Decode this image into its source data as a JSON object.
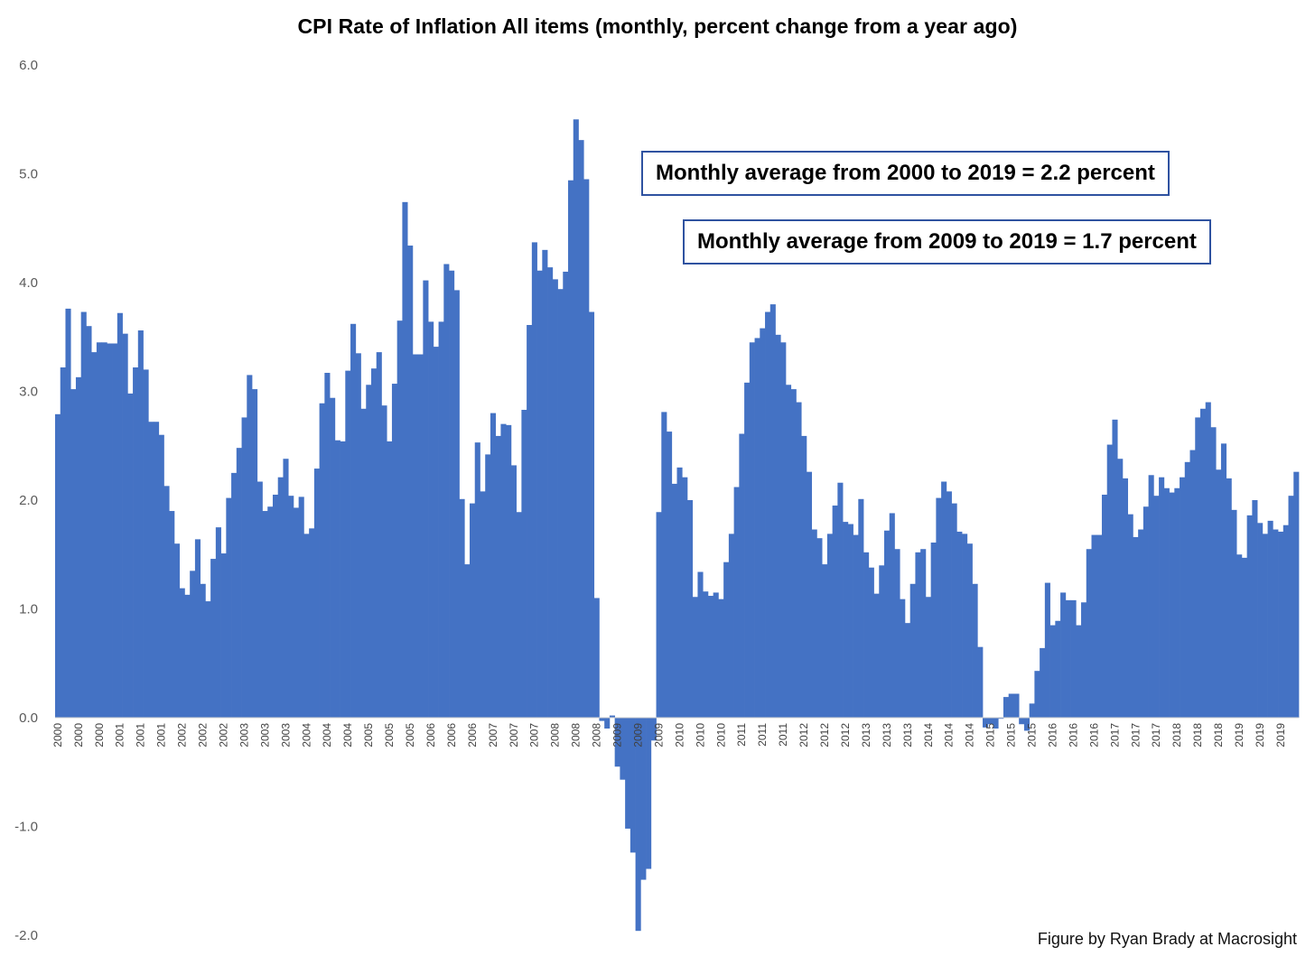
{
  "chart_data": {
    "type": "bar",
    "title": "CPI Rate of Inflation All items (monthly, percent change from a year ago)",
    "xlabel": "",
    "ylabel": "",
    "ylim": [
      -2.0,
      6.0
    ],
    "yticks": [
      "6.0",
      "5.0",
      "4.0",
      "3.0",
      "2.0",
      "1.0",
      "0.0",
      "-1.0",
      "-2.0"
    ],
    "ytick_values": [
      6,
      5,
      4,
      3,
      2,
      1,
      0,
      -1,
      -2
    ],
    "grid": false,
    "legend": "none",
    "bar_color": "#4472c4",
    "categories": [
      "2000",
      "2000",
      "2000",
      "2000",
      "2000",
      "2000",
      "2000",
      "2000",
      "2000",
      "2000",
      "2000",
      "2000",
      "2001",
      "2001",
      "2001",
      "2001",
      "2001",
      "2001",
      "2001",
      "2001",
      "2001",
      "2001",
      "2001",
      "2001",
      "2002",
      "2002",
      "2002",
      "2002",
      "2002",
      "2002",
      "2002",
      "2002",
      "2002",
      "2002",
      "2002",
      "2002",
      "2003",
      "2003",
      "2003",
      "2003",
      "2003",
      "2003",
      "2003",
      "2003",
      "2003",
      "2003",
      "2003",
      "2003",
      "2004",
      "2004",
      "2004",
      "2004",
      "2004",
      "2004",
      "2004",
      "2004",
      "2004",
      "2004",
      "2004",
      "2004",
      "2005",
      "2005",
      "2005",
      "2005",
      "2005",
      "2005",
      "2005",
      "2005",
      "2005",
      "2005",
      "2005",
      "2005",
      "2006",
      "2006",
      "2006",
      "2006",
      "2006",
      "2006",
      "2006",
      "2006",
      "2006",
      "2006",
      "2006",
      "2006",
      "2007",
      "2007",
      "2007",
      "2007",
      "2007",
      "2007",
      "2007",
      "2007",
      "2007",
      "2007",
      "2007",
      "2007",
      "2008",
      "2008",
      "2008",
      "2008",
      "2008",
      "2008",
      "2008",
      "2008",
      "2008",
      "2008",
      "2008",
      "2008",
      "2009",
      "2009",
      "2009",
      "2009",
      "2009",
      "2009",
      "2009",
      "2009",
      "2009",
      "2009",
      "2009",
      "2009",
      "2010",
      "2010",
      "2010",
      "2010",
      "2010",
      "2010",
      "2010",
      "2010",
      "2010",
      "2010",
      "2010",
      "2010",
      "2011",
      "2011",
      "2011",
      "2011",
      "2011",
      "2011",
      "2011",
      "2011",
      "2011",
      "2011",
      "2011",
      "2011",
      "2012",
      "2012",
      "2012",
      "2012",
      "2012",
      "2012",
      "2012",
      "2012",
      "2012",
      "2012",
      "2012",
      "2012",
      "2013",
      "2013",
      "2013",
      "2013",
      "2013",
      "2013",
      "2013",
      "2013",
      "2013",
      "2013",
      "2013",
      "2013",
      "2014",
      "2014",
      "2014",
      "2014",
      "2014",
      "2014",
      "2014",
      "2014",
      "2014",
      "2014",
      "2014",
      "2014",
      "2015",
      "2015",
      "2015",
      "2015",
      "2015",
      "2015",
      "2015",
      "2015",
      "2015",
      "2015",
      "2015",
      "2015",
      "2016",
      "2016",
      "2016",
      "2016",
      "2016",
      "2016",
      "2016",
      "2016",
      "2016",
      "2016",
      "2016",
      "2016",
      "2017",
      "2017",
      "2017",
      "2017",
      "2017",
      "2017",
      "2017",
      "2017",
      "2017",
      "2017",
      "2017",
      "2017",
      "2018",
      "2018",
      "2018",
      "2018",
      "2018",
      "2018",
      "2018",
      "2018",
      "2018",
      "2018",
      "2018",
      "2018",
      "2019",
      "2019",
      "2019",
      "2019",
      "2019",
      "2019",
      "2019",
      "2019",
      "2019",
      "2019",
      "2019",
      "2019"
    ],
    "values": [
      2.79,
      3.22,
      3.76,
      3.02,
      3.13,
      3.73,
      3.6,
      3.36,
      3.45,
      3.45,
      3.44,
      3.44,
      3.72,
      3.53,
      2.98,
      3.22,
      3.56,
      3.2,
      2.72,
      2.72,
      2.6,
      2.13,
      1.9,
      1.6,
      1.19,
      1.13,
      1.35,
      1.64,
      1.23,
      1.07,
      1.46,
      1.75,
      1.51,
      2.02,
      2.25,
      2.48,
      2.76,
      3.15,
      3.02,
      2.17,
      1.9,
      1.94,
      2.05,
      2.21,
      2.38,
      2.04,
      1.93,
      2.03,
      1.69,
      1.74,
      2.29,
      2.89,
      3.17,
      2.94,
      2.55,
      2.54,
      3.19,
      3.62,
      3.35,
      2.84,
      3.06,
      3.21,
      3.36,
      2.87,
      2.54,
      3.07,
      3.65,
      4.74,
      4.34,
      3.34,
      3.34,
      4.02,
      3.64,
      3.41,
      3.64,
      4.17,
      4.11,
      3.93,
      2.01,
      1.41,
      1.97,
      2.53,
      2.08,
      2.42,
      2.8,
      2.59,
      2.7,
      2.69,
      2.32,
      1.89,
      2.83,
      3.61,
      4.37,
      4.11,
      4.3,
      4.14,
      4.03,
      3.94,
      4.1,
      4.94,
      5.5,
      5.31,
      4.95,
      3.73,
      1.1,
      -0.03,
      -0.1,
      0.02,
      -0.45,
      -0.57,
      -1.02,
      -1.24,
      -1.96,
      -1.49,
      -1.39,
      -0.21,
      1.89,
      2.81,
      2.63,
      2.15,
      2.3,
      2.21,
      2.0,
      1.11,
      1.34,
      1.16,
      1.12,
      1.15,
      1.09,
      1.43,
      1.69,
      2.12,
      2.61,
      3.08,
      3.45,
      3.49,
      3.58,
      3.73,
      3.8,
      3.52,
      3.45,
      3.06,
      3.02,
      2.9,
      2.59,
      2.26,
      1.73,
      1.65,
      1.41,
      1.69,
      1.95,
      2.16,
      1.8,
      1.78,
      1.68,
      2.01,
      1.52,
      1.38,
      1.14,
      1.4,
      1.72,
      1.88,
      1.55,
      1.09,
      0.87,
      1.23,
      1.52,
      1.55,
      1.11,
      1.61,
      2.02,
      2.17,
      2.08,
      1.97,
      1.71,
      1.69,
      1.6,
      1.23,
      0.65,
      -0.09,
      -0.06,
      -0.1,
      -0.01,
      0.19,
      0.22,
      0.22,
      -0.06,
      -0.12,
      0.13,
      0.43,
      0.64,
      1.24,
      0.85,
      0.89,
      1.15,
      1.08,
      1.08,
      0.85,
      1.06,
      1.55,
      1.68,
      1.68,
      2.05,
      2.51,
      2.74,
      2.38,
      2.2,
      1.87,
      1.66,
      1.73,
      1.94,
      2.23,
      2.04,
      2.21,
      2.11,
      2.07,
      2.11,
      2.21,
      2.35,
      2.46,
      2.76,
      2.84,
      2.9,
      2.67,
      2.28,
      2.52,
      2.2,
      1.91,
      1.5,
      1.47,
      1.86,
      2.0,
      1.79,
      1.69,
      1.81,
      1.73,
      1.71,
      1.77,
      2.04,
      2.26
    ]
  },
  "annotations": [
    "Monthly average from 2000 to 2019 = 2.2 percent",
    "Monthly average from 2009 to 2019 = 1.7 percent"
  ],
  "credit": "Figure by Ryan Brady at Macrosight"
}
